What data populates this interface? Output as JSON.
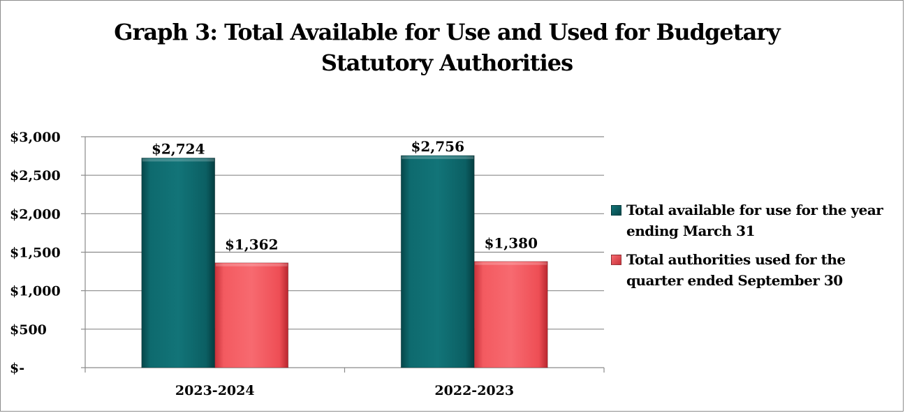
{
  "chart_data": {
    "type": "bar",
    "title_lines": [
      "Graph 3: Total Available for Use and Used for Budgetary",
      "Statutory Authorities"
    ],
    "categories": [
      "2023-2024",
      "2022-2023"
    ],
    "series": [
      {
        "name": "Total available for use for the year ending March 31",
        "legend_lines": [
          "Total available for use for the year",
          "ending March 31"
        ],
        "color": "#0b5f63",
        "values": [
          2724,
          2756
        ],
        "labels": [
          "$2,724",
          "$2,756"
        ]
      },
      {
        "name": "Total authorities used for the quarter ended September 30",
        "legend_lines": [
          "Total authorities used for the",
          "quarter ended September 30"
        ],
        "color": "#f04e55",
        "values": [
          1362,
          1380
        ],
        "labels": [
          "$1,362",
          "$1,380"
        ]
      }
    ],
    "y_ticks": [
      0,
      500,
      1000,
      1500,
      2000,
      2500,
      3000
    ],
    "y_tick_labels": [
      "$-",
      "$500",
      "$1,000",
      "$1,500",
      "$2,000",
      "$2,500",
      "$3,000"
    ],
    "ylim": [
      0,
      3000
    ],
    "grid": true,
    "legend_position": "right"
  }
}
